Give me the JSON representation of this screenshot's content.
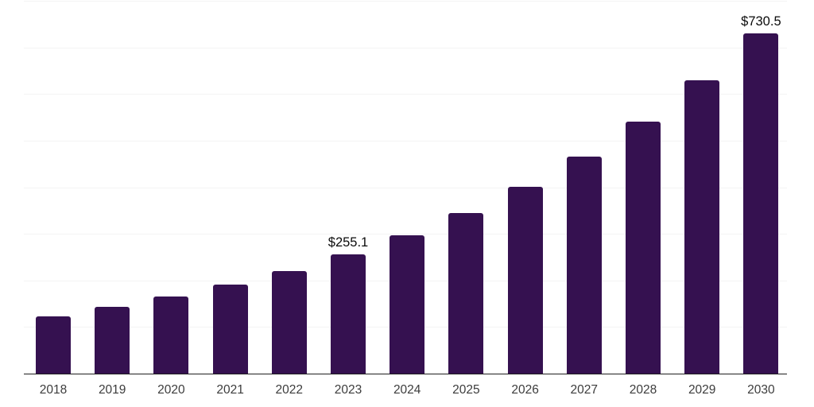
{
  "chart_data": {
    "type": "bar",
    "title": "",
    "xlabel": "",
    "ylabel": "",
    "categories": [
      "2018",
      "2019",
      "2020",
      "2021",
      "2022",
      "2023",
      "2024",
      "2025",
      "2026",
      "2027",
      "2028",
      "2029",
      "2030"
    ],
    "values": [
      123.0,
      142.5,
      165.0,
      190.3,
      219.5,
      255.1,
      296.5,
      344.6,
      400.5,
      465.4,
      541.0,
      628.7,
      730.5
    ],
    "ylim": [
      0,
      800
    ],
    "grid": "horizontal",
    "grid_interval": 100,
    "y_axis_labels_visible": false,
    "legend_position": "none",
    "annotations": [
      {
        "category": "2023",
        "text": "$255.1"
      },
      {
        "category": "2030",
        "text": "$730.5"
      }
    ],
    "colors": {
      "bar_fill": "#351150",
      "axis_line": "#1f1f1f",
      "gridline": "#f4f4f4",
      "tick_label": "#3c3c3c",
      "value_label": "#0b0b0b",
      "background": "#ffffff"
    }
  }
}
